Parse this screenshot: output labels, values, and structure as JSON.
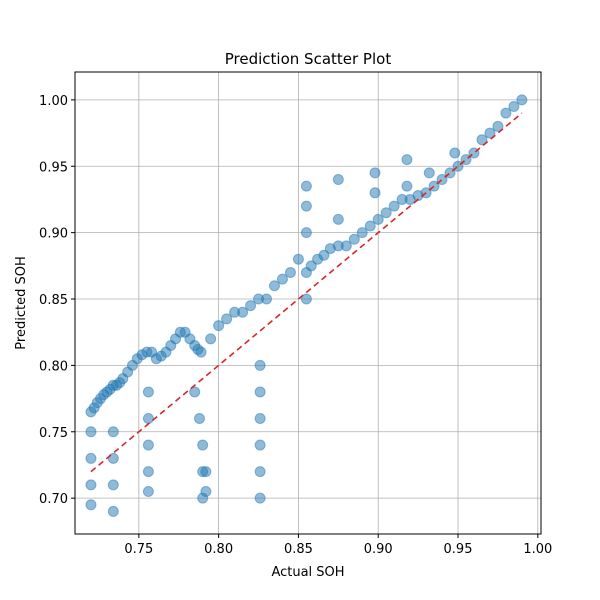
{
  "chart_data": {
    "type": "scatter",
    "title": "Prediction Scatter Plot",
    "xlabel": "Actual SOH",
    "ylabel": "Predicted SOH",
    "xlim": [
      0.71,
      1.002
    ],
    "ylim": [
      0.673,
      1.021
    ],
    "xticks": [
      0.75,
      0.8,
      0.85,
      0.9,
      0.95,
      1.0
    ],
    "xtick_labels": [
      "0.75",
      "0.80",
      "0.85",
      "0.90",
      "0.95",
      "1.00"
    ],
    "yticks": [
      0.7,
      0.75,
      0.8,
      0.85,
      0.9,
      0.95,
      1.0
    ],
    "ytick_labels": [
      "0.70",
      "0.75",
      "0.80",
      "0.85",
      "0.90",
      "0.95",
      "1.00"
    ],
    "grid": true,
    "point_color": "#1f77b4",
    "point_alpha": 0.5,
    "reference_line": {
      "x": [
        0.72,
        0.99
      ],
      "y": [
        0.72,
        0.99
      ],
      "color": "#d62728",
      "style": "dashed"
    },
    "series": [
      {
        "x": [
          0.72,
          0.722,
          0.724,
          0.726,
          0.728,
          0.73,
          0.732,
          0.734,
          0.736,
          0.738,
          0.72,
          0.72,
          0.72,
          0.72,
          0.734,
          0.734,
          0.734,
          0.734,
          0.74,
          0.743,
          0.746,
          0.749,
          0.752,
          0.755,
          0.758,
          0.761,
          0.764,
          0.767,
          0.756,
          0.756,
          0.756,
          0.756,
          0.756,
          0.77,
          0.773,
          0.776,
          0.779,
          0.782,
          0.785,
          0.787,
          0.789,
          0.785,
          0.788,
          0.79,
          0.79,
          0.79,
          0.792,
          0.792,
          0.795,
          0.8,
          0.805,
          0.81,
          0.815,
          0.82,
          0.825,
          0.826,
          0.826,
          0.826,
          0.826,
          0.826,
          0.826,
          0.83,
          0.835,
          0.84,
          0.845,
          0.85,
          0.855,
          0.855,
          0.855,
          0.855,
          0.855,
          0.858,
          0.862,
          0.866,
          0.87,
          0.875,
          0.875,
          0.875,
          0.88,
          0.885,
          0.89,
          0.895,
          0.898,
          0.898,
          0.9,
          0.905,
          0.91,
          0.915,
          0.918,
          0.918,
          0.92,
          0.925,
          0.93,
          0.932,
          0.935,
          0.94,
          0.945,
          0.948,
          0.95,
          0.955,
          0.96,
          0.965,
          0.97,
          0.975,
          0.98,
          0.985,
          0.99
        ],
        "y": [
          0.765,
          0.768,
          0.772,
          0.775,
          0.778,
          0.78,
          0.782,
          0.785,
          0.785,
          0.787,
          0.75,
          0.73,
          0.71,
          0.695,
          0.75,
          0.73,
          0.71,
          0.69,
          0.79,
          0.795,
          0.8,
          0.805,
          0.808,
          0.81,
          0.81,
          0.805,
          0.807,
          0.81,
          0.78,
          0.76,
          0.74,
          0.72,
          0.705,
          0.815,
          0.82,
          0.825,
          0.825,
          0.82,
          0.815,
          0.812,
          0.81,
          0.78,
          0.76,
          0.74,
          0.72,
          0.7,
          0.72,
          0.705,
          0.82,
          0.83,
          0.835,
          0.84,
          0.84,
          0.845,
          0.85,
          0.8,
          0.78,
          0.76,
          0.74,
          0.72,
          0.7,
          0.85,
          0.86,
          0.865,
          0.87,
          0.88,
          0.935,
          0.92,
          0.9,
          0.87,
          0.85,
          0.875,
          0.88,
          0.883,
          0.888,
          0.89,
          0.91,
          0.94,
          0.89,
          0.895,
          0.9,
          0.905,
          0.93,
          0.945,
          0.91,
          0.915,
          0.92,
          0.925,
          0.935,
          0.955,
          0.925,
          0.928,
          0.93,
          0.945,
          0.935,
          0.94,
          0.945,
          0.96,
          0.95,
          0.955,
          0.96,
          0.97,
          0.975,
          0.98,
          0.99,
          0.995,
          1.0
        ]
      }
    ]
  }
}
